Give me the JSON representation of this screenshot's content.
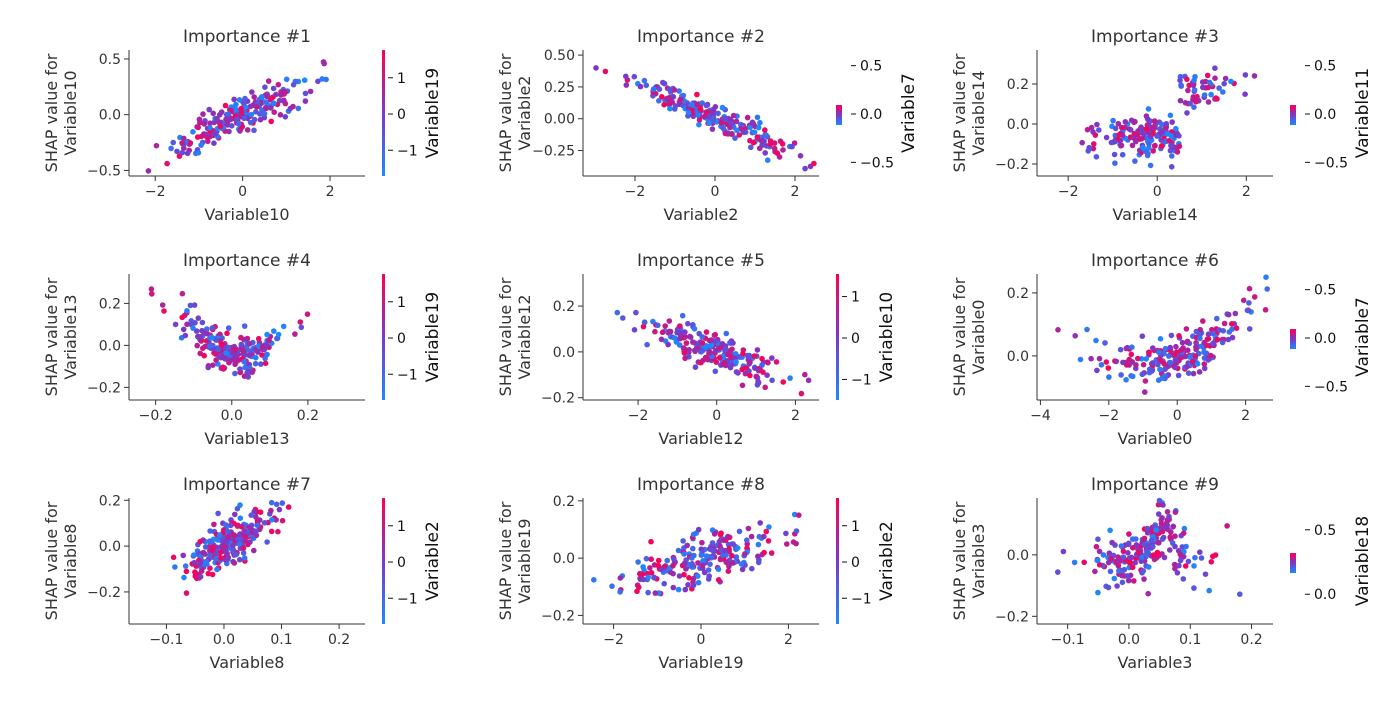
{
  "colors": {
    "low": "#1a8bff",
    "mid": "#7c38c9",
    "high": "#ff0052",
    "axis": "#333333"
  },
  "chart_data": [
    {
      "type": "scatter",
      "title": "Importance #1",
      "xlabel": "Variable10",
      "ylabel": [
        "SHAP value for",
        "Variable10"
      ],
      "xlim": [
        -2.6,
        2.8
      ],
      "ylim": [
        -0.55,
        0.58
      ],
      "xticks": [
        -2,
        0,
        2
      ],
      "xtick_labels": [
        "−2",
        "0",
        "2"
      ],
      "yticks": [
        -0.5,
        0.0,
        0.5
      ],
      "ytick_labels": [
        "−0.5",
        "0.0",
        "0.5"
      ],
      "colorbar": {
        "label": "Variable19",
        "style": "tall",
        "ticks": [
          1,
          0,
          -1
        ],
        "tick_labels": [
          "1",
          "0",
          "−1"
        ],
        "range": [
          -1.6,
          1.6
        ]
      },
      "shape": {
        "kind": "linear",
        "slope": 0.17,
        "intercept": 0.0,
        "noise": 0.08,
        "xmean": 0,
        "xsd": 0.8
      },
      "seed": 11,
      "n": 220
    },
    {
      "type": "scatter",
      "title": "Importance #2",
      "xlabel": "Variable2",
      "ylabel": [
        "SHAP value for",
        "Variable2"
      ],
      "xlim": [
        -3.3,
        2.6
      ],
      "ylim": [
        -0.45,
        0.54
      ],
      "xticks": [
        -2,
        0,
        2
      ],
      "xtick_labels": [
        "−2",
        "0",
        "2"
      ],
      "yticks": [
        -0.25,
        0.0,
        0.25,
        0.5
      ],
      "ytick_labels": [
        "−0.25",
        "0.00",
        "0.25",
        "0.50"
      ],
      "colorbar": {
        "label": "Variable7",
        "style": "short",
        "ticks": [
          0.5,
          0.0,
          -0.5
        ],
        "tick_labels": [
          "0.5",
          "0.0",
          "−0.5"
        ],
        "range": [
          -0.6,
          0.6
        ]
      },
      "shape": {
        "kind": "linear",
        "slope": -0.14,
        "intercept": 0.0,
        "noise": 0.05,
        "xmean": 0,
        "xsd": 1.0
      },
      "seed": 22,
      "n": 220
    },
    {
      "type": "scatter",
      "title": "Importance #3",
      "xlabel": "Variable14",
      "ylabel": [
        "SHAP value for",
        "Variable14"
      ],
      "xlim": [
        -2.7,
        2.6
      ],
      "ylim": [
        -0.26,
        0.37
      ],
      "xticks": [
        -2,
        0,
        2
      ],
      "xtick_labels": [
        "−2",
        "0",
        "2"
      ],
      "yticks": [
        -0.2,
        0.0,
        0.2
      ],
      "ytick_labels": [
        "−0.2",
        "0.0",
        "0.2"
      ],
      "colorbar": {
        "label": "Variable11",
        "style": "short",
        "ticks": [
          0.5,
          0.0,
          -0.5
        ],
        "tick_labels": [
          "0.5",
          "0.0",
          "−0.5"
        ],
        "range": [
          -0.6,
          0.6
        ]
      },
      "shape": {
        "kind": "step",
        "threshold": 0.5,
        "low": -0.06,
        "high": 0.18,
        "noise": 0.05,
        "xmean": 0,
        "xsd": 0.8
      },
      "seed": 33,
      "n": 220
    },
    {
      "type": "scatter",
      "title": "Importance #4",
      "xlabel": "Variable13",
      "ylabel": [
        "SHAP value for",
        "Variable13"
      ],
      "xlim": [
        -0.27,
        0.35
      ],
      "ylim": [
        -0.26,
        0.34
      ],
      "xticks": [
        -0.2,
        0.0,
        0.2
      ],
      "xtick_labels": [
        "−0.2",
        "0.0",
        "0.2"
      ],
      "yticks": [
        -0.2,
        0.0,
        0.2
      ],
      "ytick_labels": [
        "−0.2",
        "0.0",
        "0.2"
      ],
      "colorbar": {
        "label": "Variable19",
        "style": "tall",
        "ticks": [
          1,
          0,
          -1
        ],
        "tick_labels": [
          "1",
          "0",
          "−1"
        ],
        "range": [
          -1.6,
          1.6
        ]
      },
      "shape": {
        "kind": "vshape",
        "center": 0.02,
        "slope": 1.5,
        "floor": -0.05,
        "noise": 0.05,
        "xmean": 0.0,
        "xsd": 0.07
      },
      "seed": 44,
      "n": 220
    },
    {
      "type": "scatter",
      "title": "Importance #5",
      "xlabel": "Variable12",
      "ylabel": [
        "SHAP value for",
        "Variable12"
      ],
      "xlim": [
        -3.4,
        2.6
      ],
      "ylim": [
        -0.21,
        0.34
      ],
      "xticks": [
        -2,
        0,
        2
      ],
      "xtick_labels": [
        "−2",
        "0",
        "2"
      ],
      "yticks": [
        -0.2,
        0.0,
        0.2
      ],
      "ytick_labels": [
        "−0.2",
        "0.0",
        "0.2"
      ],
      "colorbar": {
        "label": "Variable10",
        "style": "tall",
        "ticks": [
          1,
          0,
          -1
        ],
        "tick_labels": [
          "1",
          "0",
          "−1"
        ],
        "range": [
          -1.4,
          1.4
        ]
      },
      "shape": {
        "kind": "linear",
        "slope": -0.06,
        "intercept": 0.0,
        "noise": 0.04,
        "xmean": 0,
        "xsd": 0.9
      },
      "seed": 55,
      "n": 220
    },
    {
      "type": "scatter",
      "title": "Importance #6",
      "xlabel": "Variable0",
      "ylabel": [
        "SHAP value for",
        "Variable0"
      ],
      "xlim": [
        -4.1,
        2.8
      ],
      "ylim": [
        -0.14,
        0.26
      ],
      "xticks": [
        -4,
        -2,
        0,
        2
      ],
      "xtick_labels": [
        "−4",
        "−2",
        "0",
        "2"
      ],
      "yticks": [
        0.0,
        0.2
      ],
      "ytick_labels": [
        "0.0",
        "0.2"
      ],
      "colorbar": {
        "label": "Variable7",
        "style": "short",
        "ticks": [
          0.5,
          0.0,
          -0.5
        ],
        "tick_labels": [
          "0.5",
          "0.0",
          "−0.5"
        ],
        "range": [
          -0.6,
          0.6
        ]
      },
      "shape": {
        "kind": "quad",
        "a": 0.02,
        "b": 0.04,
        "intercept": -0.01,
        "noise": 0.035,
        "xmean": 0.0,
        "xsd": 1.1
      },
      "seed": 66,
      "n": 220
    },
    {
      "type": "scatter",
      "title": "Importance #7",
      "xlabel": "Variable8",
      "ylabel": [
        "SHAP value for",
        "Variable8"
      ],
      "xlim": [
        -0.165,
        0.245
      ],
      "ylim": [
        -0.34,
        0.21
      ],
      "xticks": [
        -0.1,
        0.0,
        0.1,
        0.2
      ],
      "xtick_labels": [
        "−0.1",
        "0.0",
        "0.1",
        "0.2"
      ],
      "yticks": [
        -0.2,
        0.0,
        0.2
      ],
      "ytick_labels": [
        "−0.2",
        "0.0",
        "0.2"
      ],
      "colorbar": {
        "label": "Variable2",
        "style": "tall",
        "ticks": [
          1,
          0,
          -1
        ],
        "tick_labels": [
          "1",
          "0",
          "−1"
        ],
        "range": [
          -1.6,
          1.6
        ]
      },
      "shape": {
        "kind": "linear",
        "slope": 1.4,
        "intercept": 0.0,
        "noise": 0.05,
        "xmean": 0.01,
        "xsd": 0.045
      },
      "seed": 77,
      "n": 220
    },
    {
      "type": "scatter",
      "title": "Importance #8",
      "xlabel": "Variable19",
      "ylabel": [
        "SHAP value for",
        "Variable19"
      ],
      "xlim": [
        -2.7,
        2.7
      ],
      "ylim": [
        -0.23,
        0.21
      ],
      "xticks": [
        -2,
        0,
        2
      ],
      "xtick_labels": [
        "−2",
        "0",
        "2"
      ],
      "yticks": [
        -0.2,
        0.0,
        0.2
      ],
      "ytick_labels": [
        "−0.2",
        "0.0",
        "0.2"
      ],
      "colorbar": {
        "label": "Variable2",
        "style": "tall",
        "ticks": [
          1,
          0,
          -1
        ],
        "tick_labels": [
          "1",
          "0",
          "−1"
        ],
        "range": [
          -1.6,
          1.6
        ]
      },
      "shape": {
        "kind": "linear",
        "slope": 0.04,
        "intercept": 0.0,
        "noise": 0.045,
        "xmean": 0,
        "xsd": 1.0
      },
      "seed": 88,
      "n": 220
    },
    {
      "type": "scatter",
      "title": "Importance #9",
      "xlabel": "Variable3",
      "ylabel": [
        "SHAP value for",
        "Variable3"
      ],
      "xlim": [
        -0.15,
        0.235
      ],
      "ylim": [
        -0.225,
        0.185
      ],
      "xticks": [
        -0.1,
        0.0,
        0.1,
        0.2
      ],
      "xtick_labels": [
        "−0.1",
        "0.0",
        "0.1",
        "0.2"
      ],
      "yticks": [
        -0.2,
        0.0
      ],
      "ytick_labels": [
        "−0.2",
        "0.0"
      ],
      "colorbar": {
        "label": "Variable18",
        "style": "short",
        "ticks": [
          0.5,
          0.0
        ],
        "tick_labels": [
          "0.5",
          "0.0"
        ],
        "range": [
          -0.2,
          0.7
        ]
      },
      "shape": {
        "kind": "hump",
        "center": 0.055,
        "height": 0.09,
        "width": 0.03,
        "base": -0.02,
        "noise": 0.045,
        "xmean": 0.03,
        "xsd": 0.045
      },
      "seed": 99,
      "n": 220
    }
  ]
}
